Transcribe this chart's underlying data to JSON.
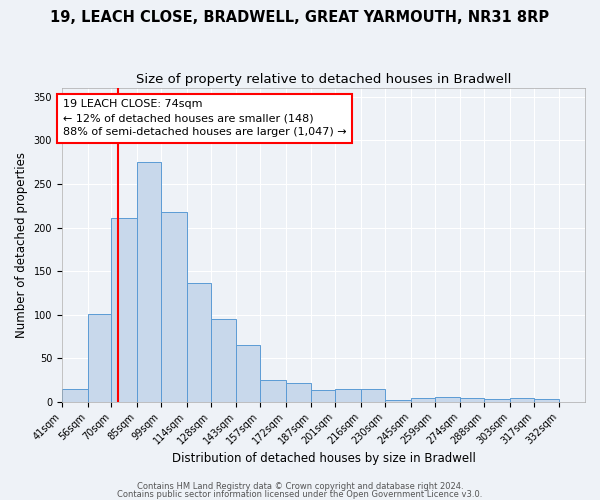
{
  "title1": "19, LEACH CLOSE, BRADWELL, GREAT YARMOUTH, NR31 8RP",
  "title2": "Size of property relative to detached houses in Bradwell",
  "xlabel": "Distribution of detached houses by size in Bradwell",
  "ylabel": "Number of detached properties",
  "bin_edges": [
    41,
    56,
    70,
    85,
    99,
    114,
    128,
    143,
    157,
    172,
    187,
    201,
    216,
    230,
    245,
    259,
    274,
    288,
    303,
    317,
    332
  ],
  "bar_heights": [
    15,
    101,
    211,
    275,
    218,
    136,
    95,
    65,
    25,
    22,
    14,
    15,
    15,
    2,
    4,
    5,
    4,
    3,
    4,
    3
  ],
  "bar_color": "#c8d8eb",
  "bar_edge_color": "#5b9bd5",
  "red_line_x": 74,
  "ylim": [
    0,
    360
  ],
  "yticks": [
    0,
    50,
    100,
    150,
    200,
    250,
    300,
    350
  ],
  "annotation_title": "19 LEACH CLOSE: 74sqm",
  "annotation_line1": "← 12% of detached houses are smaller (148)",
  "annotation_line2": "88% of semi-detached houses are larger (1,047) →",
  "footer1": "Contains HM Land Registry data © Crown copyright and database right 2024.",
  "footer2": "Contains public sector information licensed under the Open Government Licence v3.0.",
  "background_color": "#eef2f7",
  "grid_color": "#ffffff",
  "title1_fontsize": 10.5,
  "title2_fontsize": 9.5,
  "xlabel_fontsize": 8.5,
  "ylabel_fontsize": 8.5,
  "tick_fontsize": 7,
  "annotation_fontsize": 8,
  "footer_fontsize": 6
}
